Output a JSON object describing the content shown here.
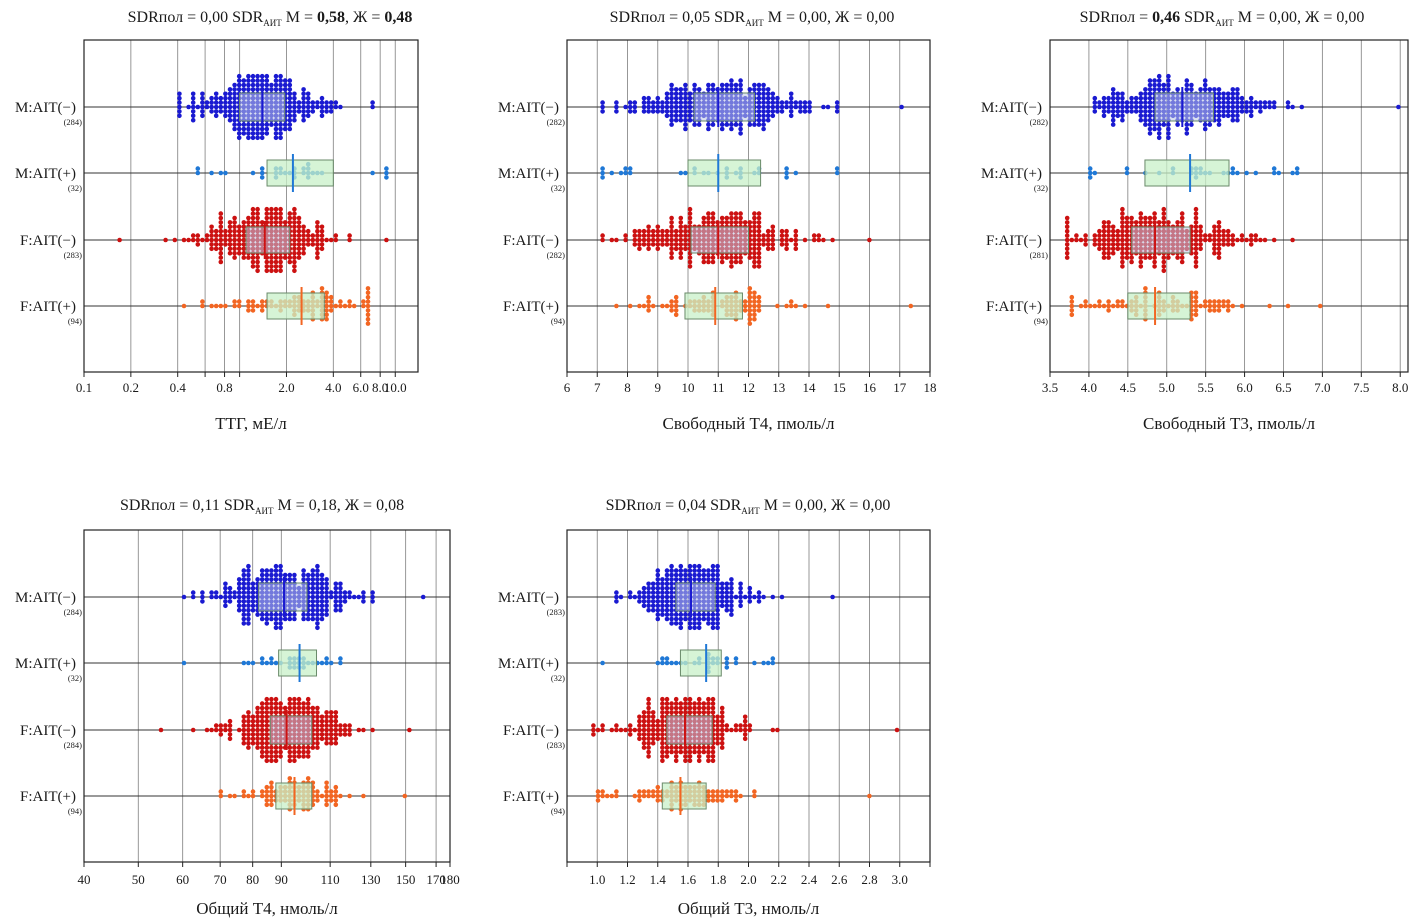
{
  "chart_data": [
    {
      "type": "scatter",
      "subtype": "beeswarm-boxplot",
      "title": {
        "lead": "SDRпол = ",
        "sex_value": "0,00",
        "sex_value_bold": false,
        "mid": " SDR",
        "subscript": "АИТ",
        "m_prefix": " М = ",
        "m_value": "0,58",
        "m_value_bold": true,
        "f_prefix": ", Ж = ",
        "f_value": "0,48",
        "f_value_bold": true
      },
      "xlabel": "ТТГ, мЕ/л",
      "scale": "log",
      "xlim": [
        0.1,
        14
      ],
      "ticks": [
        0.1,
        0.2,
        0.4,
        0.6,
        0.8,
        1.0,
        2.0,
        4.0,
        6.0,
        8.0,
        10.0
      ],
      "tick_labels": [
        "0.1",
        "0.2",
        "0.4",
        "",
        "0.8",
        "",
        "2.0",
        "4.0",
        "6.0",
        "8.0",
        "10.0"
      ],
      "grid": true,
      "groups": [
        {
          "label": "M:AIT(−)",
          "n": "(284)",
          "color": "#1a1ad1",
          "box": [
            1.0,
            1.95
          ],
          "median": 1.4,
          "range": [
            0.42,
            7.2
          ]
        },
        {
          "label": "M:AIT(+)",
          "n": "(32)",
          "color": "#1f78d6",
          "box": [
            1.5,
            4.0
          ],
          "median": 2.2,
          "range": [
            0.55,
            8.6
          ]
        },
        {
          "label": "F:AIT(−)",
          "n": "(283)",
          "color": "#cc1111",
          "box": [
            1.1,
            2.1
          ],
          "median": 1.45,
          "range": [
            0.17,
            8.5
          ]
        },
        {
          "label": "F:AIT(+)",
          "n": "(94)",
          "color": "#f26522",
          "box": [
            1.5,
            3.5
          ],
          "median": 2.5,
          "range": [
            0.45,
            6.5
          ]
        }
      ]
    },
    {
      "type": "scatter",
      "subtype": "beeswarm-boxplot",
      "title": {
        "lead": "SDRпол = ",
        "sex_value": "0,05",
        "sex_value_bold": false,
        "mid": " SDR",
        "subscript": "АИТ",
        "m_prefix": " М = ",
        "m_value": "0,00",
        "m_value_bold": false,
        "f_prefix": ", Ж = ",
        "f_value": "0,00",
        "f_value_bold": false
      },
      "xlabel": "Свободный Т4, пмоль/л",
      "scale": "linear",
      "xlim": [
        6,
        18
      ],
      "ticks": [
        6,
        7,
        8,
        9,
        10,
        11,
        12,
        13,
        14,
        15,
        16,
        17,
        18
      ],
      "tick_labels": [
        "6",
        "7",
        "8",
        "9",
        "10",
        "11",
        "12",
        "13",
        "14",
        "15",
        "16",
        "17",
        "18"
      ],
      "grid": true,
      "groups": [
        {
          "label": "M:AIT(−)",
          "n": "(282)",
          "color": "#1a1ad1",
          "box": [
            10.2,
            12.2
          ],
          "median": 11.0,
          "range": [
            7.2,
            17.1
          ]
        },
        {
          "label": "M:AIT(+)",
          "n": "(32)",
          "color": "#1f78d6",
          "box": [
            10.0,
            12.4
          ],
          "median": 11.0,
          "range": [
            7.2,
            14.9
          ]
        },
        {
          "label": "F:AIT(−)",
          "n": "(282)",
          "color": "#cc1111",
          "box": [
            10.1,
            12.0
          ],
          "median": 11.0,
          "range": [
            7.2,
            16.0
          ]
        },
        {
          "label": "F:AIT(+)",
          "n": "(94)",
          "color": "#f26522",
          "box": [
            9.9,
            11.8
          ],
          "median": 10.9,
          "range": [
            7.6,
            17.4
          ]
        }
      ]
    },
    {
      "type": "scatter",
      "subtype": "beeswarm-boxplot",
      "title": {
        "lead": "SDRпол = ",
        "sex_value": "0,46",
        "sex_value_bold": true,
        "mid": " SDR",
        "subscript": "АИТ",
        "m_prefix": " М = ",
        "m_value": "0,00",
        "m_value_bold": false,
        "f_prefix": ", Ж = ",
        "f_value": "0,00",
        "f_value_bold": false
      },
      "xlabel": "Свободный Т3, пмоль/л",
      "scale": "linear",
      "xlim": [
        3.5,
        8.1
      ],
      "ticks": [
        3.5,
        4.0,
        4.5,
        5.0,
        5.5,
        6.0,
        6.5,
        7.0,
        7.5,
        8.0
      ],
      "tick_labels": [
        "3.5",
        "4.0",
        "4.5",
        "5.0",
        "5.5",
        "6.0",
        "6.5",
        "7.0",
        "7.5",
        "8.0"
      ],
      "grid": true,
      "groups": [
        {
          "label": "M:AIT(−)",
          "n": "(282)",
          "color": "#1a1ad1",
          "box": [
            4.85,
            5.6
          ],
          "median": 5.2,
          "range": [
            4.05,
            7.95
          ]
        },
        {
          "label": "M:AIT(+)",
          "n": "(32)",
          "color": "#1f78d6",
          "box": [
            4.72,
            5.8
          ],
          "median": 5.3,
          "range": [
            4.0,
            6.65
          ]
        },
        {
          "label": "F:AIT(−)",
          "n": "(281)",
          "color": "#cc1111",
          "box": [
            4.55,
            5.3
          ],
          "median": 4.85,
          "range": [
            3.7,
            6.6
          ]
        },
        {
          "label": "F:AIT(+)",
          "n": "(94)",
          "color": "#f26522",
          "box": [
            4.5,
            5.3
          ],
          "median": 4.85,
          "range": [
            3.8,
            6.95
          ]
        }
      ]
    },
    {
      "type": "scatter",
      "subtype": "beeswarm-boxplot",
      "title": {
        "lead": "SDRпол = ",
        "sex_value": "0,11",
        "sex_value_bold": false,
        "mid": " SDR",
        "subscript": "АИТ",
        "m_prefix": " М = ",
        "m_value": "0,18",
        "m_value_bold": false,
        "f_prefix": ", Ж = ",
        "f_value": "0,08",
        "f_value_bold": false
      },
      "xlabel": "Общий Т4, нмоль/л",
      "scale": "log",
      "xlim": [
        40,
        180
      ],
      "ticks": [
        40,
        50,
        60,
        70,
        80,
        90,
        110,
        130,
        150,
        170,
        180
      ],
      "tick_labels": [
        "40",
        "50",
        "60",
        "70",
        "80",
        "90",
        "110",
        "130",
        "150",
        "170",
        "180"
      ],
      "grid": true,
      "groups": [
        {
          "label": "M:AIT(−)",
          "n": "(284)",
          "color": "#1a1ad1",
          "box": [
            82,
            100
          ],
          "median": 91,
          "range": [
            60,
            161
          ]
        },
        {
          "label": "M:AIT(+)",
          "n": "(32)",
          "color": "#1f78d6",
          "box": [
            89,
            104
          ],
          "median": 97,
          "range": [
            60,
            115
          ]
        },
        {
          "label": "F:AIT(−)",
          "n": "(284)",
          "color": "#cc1111",
          "box": [
            86,
            102
          ],
          "median": 92,
          "range": [
            55,
            151
          ]
        },
        {
          "label": "F:AIT(+)",
          "n": "(94)",
          "color": "#f26522",
          "box": [
            88,
            102
          ],
          "median": 95,
          "range": [
            70,
            150
          ]
        }
      ]
    },
    {
      "type": "scatter",
      "subtype": "beeswarm-boxplot",
      "title": {
        "lead": "SDRпол = ",
        "sex_value": "0,04",
        "sex_value_bold": false,
        "mid": " SDR",
        "subscript": "АИТ",
        "m_prefix": " М = ",
        "m_value": "0,00",
        "m_value_bold": false,
        "f_prefix": ", Ж = ",
        "f_value": "0,00",
        "f_value_bold": false
      },
      "xlabel": "Общий Т3, нмоль/л",
      "scale": "linear",
      "xlim": [
        0.8,
        3.2
      ],
      "ticks": [
        0.8,
        1.0,
        1.2,
        1.4,
        1.6,
        1.8,
        2.0,
        2.2,
        2.4,
        2.6,
        2.8,
        3.0,
        3.2
      ],
      "tick_labels": [
        "",
        "1.0",
        "1.2",
        "1.4",
        "1.6",
        "1.8",
        "2.0",
        "2.2",
        "2.4",
        "2.6",
        "2.8",
        "3.0",
        ""
      ],
      "grid": true,
      "groups": [
        {
          "label": "M:AIT(−)",
          "n": "(283)",
          "color": "#1a1ad1",
          "box": [
            1.52,
            1.78
          ],
          "median": 1.62,
          "range": [
            1.14,
            2.55
          ]
        },
        {
          "label": "M:AIT(+)",
          "n": "(32)",
          "color": "#1f78d6",
          "box": [
            1.55,
            1.82
          ],
          "median": 1.72,
          "range": [
            1.04,
            2.15
          ]
        },
        {
          "label": "F:AIT(−)",
          "n": "(283)",
          "color": "#cc1111",
          "box": [
            1.46,
            1.76
          ],
          "median": 1.58,
          "range": [
            0.98,
            2.97
          ]
        },
        {
          "label": "F:AIT(+)",
          "n": "(94)",
          "color": "#f26522",
          "box": [
            1.43,
            1.72
          ],
          "median": 1.55,
          "range": [
            1.02,
            2.8
          ]
        }
      ]
    }
  ]
}
